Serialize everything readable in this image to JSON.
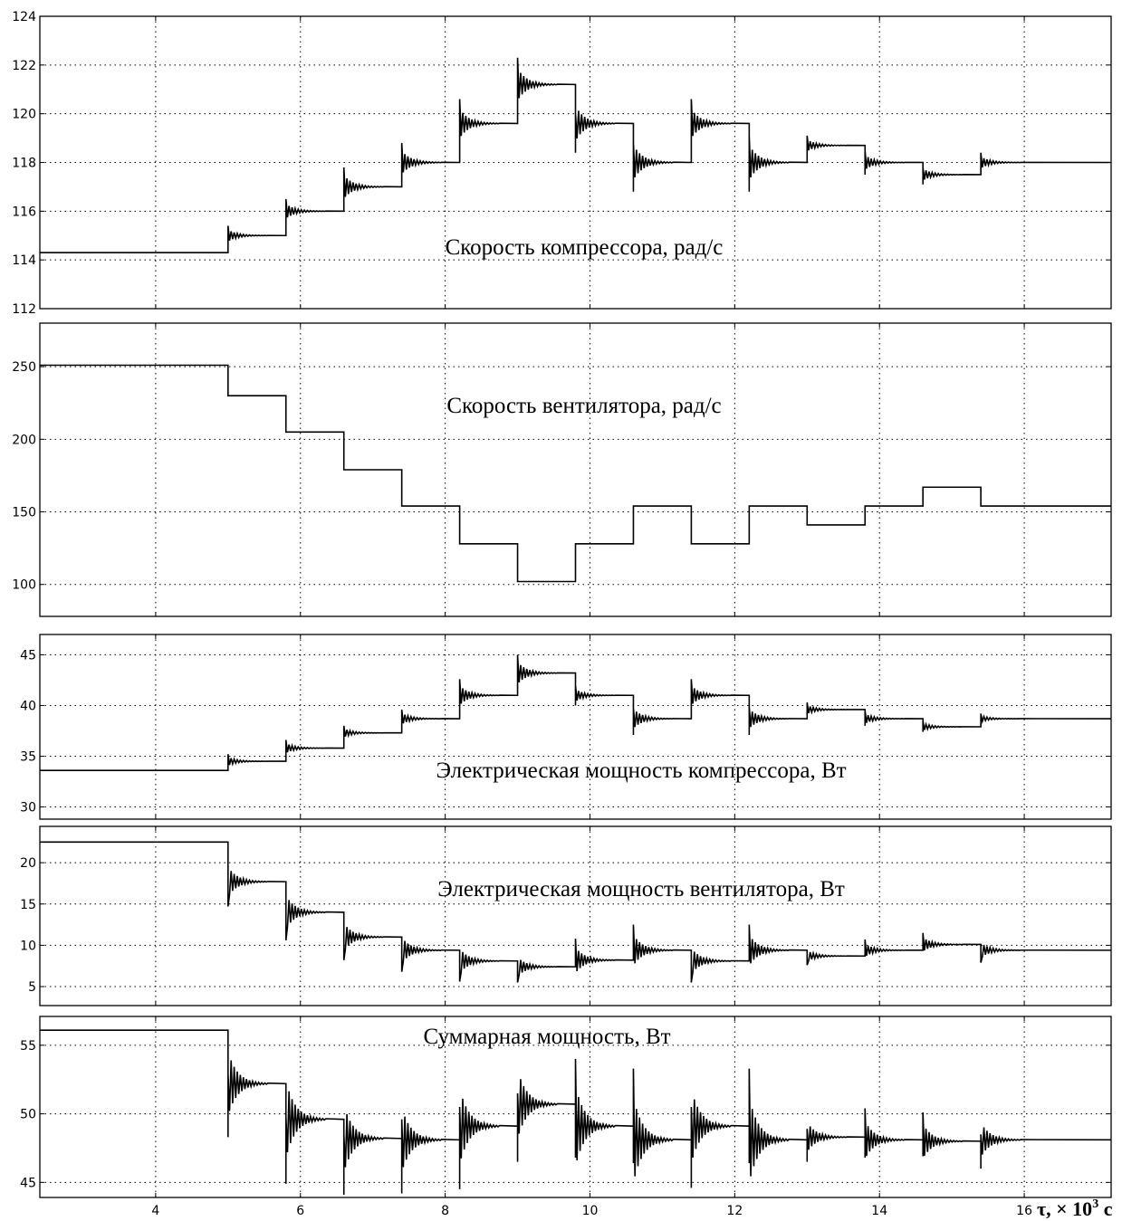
{
  "chart_data": [
    {
      "type": "line",
      "title": "Скорость компрессора, рад/с",
      "xlim": [
        2.4,
        17.2
      ],
      "ylim": [
        112,
        124
      ],
      "yticks": [
        112,
        114,
        116,
        118,
        120,
        122,
        124
      ],
      "grid": true,
      "x": [
        5.0,
        5.8,
        6.6,
        7.4,
        8.2,
        9.0,
        9.8,
        10.6,
        11.4,
        12.2,
        13.0,
        13.8,
        14.6,
        15.4
      ],
      "steps": [
        [
          2.4,
          114.3
        ],
        [
          5.0,
          115.0
        ],
        [
          5.8,
          116.0
        ],
        [
          6.6,
          117.0
        ],
        [
          7.4,
          118.0
        ],
        [
          8.2,
          119.6
        ],
        [
          9.0,
          121.2
        ],
        [
          9.8,
          119.6
        ],
        [
          10.6,
          118.0
        ],
        [
          11.4,
          119.6
        ],
        [
          12.2,
          118.0
        ],
        [
          13.0,
          118.7
        ],
        [
          13.8,
          118.0
        ],
        [
          14.6,
          117.5
        ],
        [
          15.4,
          118.0
        ]
      ],
      "spikes": [
        [
          5.0,
          115.4,
          null
        ],
        [
          5.8,
          116.5,
          null
        ],
        [
          6.6,
          117.8,
          null
        ],
        [
          7.4,
          118.8,
          null
        ],
        [
          8.2,
          120.6,
          null
        ],
        [
          9.0,
          122.3,
          null
        ],
        [
          9.8,
          120.0,
          118.4
        ],
        [
          10.6,
          118.8,
          116.8
        ],
        [
          11.4,
          120.6,
          null
        ],
        [
          12.2,
          119.1,
          116.8
        ],
        [
          13.0,
          119.1,
          null
        ],
        [
          13.8,
          118.5,
          117.5
        ],
        [
          14.6,
          117.8,
          117.1
        ],
        [
          15.4,
          118.4,
          null
        ]
      ]
    },
    {
      "type": "line",
      "title": "Скорость вентилятора, рад/с",
      "xlim": [
        2.4,
        17.2
      ],
      "ylim": [
        78,
        280
      ],
      "yticks": [
        100,
        150,
        200,
        250
      ],
      "grid": true,
      "steps": [
        [
          2.4,
          251
        ],
        [
          5.0,
          230
        ],
        [
          5.8,
          205
        ],
        [
          6.6,
          179
        ],
        [
          7.4,
          154
        ],
        [
          8.2,
          128
        ],
        [
          9.0,
          102
        ],
        [
          9.8,
          128
        ],
        [
          10.6,
          154
        ],
        [
          11.4,
          128
        ],
        [
          12.2,
          154
        ],
        [
          13.0,
          141
        ],
        [
          13.8,
          154
        ],
        [
          14.6,
          167
        ],
        [
          15.4,
          154
        ]
      ],
      "spikes": []
    },
    {
      "type": "line",
      "title": "Электрическая мощность компрессора, Вт",
      "xlim": [
        2.4,
        17.2
      ],
      "ylim": [
        28.8,
        47
      ],
      "yticks": [
        30,
        35,
        40,
        45
      ],
      "grid": true,
      "steps": [
        [
          2.4,
          33.6
        ],
        [
          5.0,
          34.5
        ],
        [
          5.8,
          35.8
        ],
        [
          6.6,
          37.3
        ],
        [
          7.4,
          38.7
        ],
        [
          8.2,
          41.0
        ],
        [
          9.0,
          43.2
        ],
        [
          9.8,
          41.0
        ],
        [
          10.6,
          38.7
        ],
        [
          11.4,
          41.0
        ],
        [
          12.2,
          38.7
        ],
        [
          13.0,
          39.6
        ],
        [
          13.8,
          38.7
        ],
        [
          14.6,
          37.9
        ],
        [
          15.4,
          38.7
        ]
      ],
      "spikes": [
        [
          5.0,
          35.2,
          null
        ],
        [
          5.8,
          36.6,
          null
        ],
        [
          6.6,
          38.0,
          null
        ],
        [
          7.4,
          39.6,
          null
        ],
        [
          8.2,
          42.6,
          null
        ],
        [
          9.0,
          45.0,
          null
        ],
        [
          9.8,
          42.0,
          40.0
        ],
        [
          10.6,
          39.8,
          37.1
        ],
        [
          11.4,
          42.6,
          null
        ],
        [
          12.2,
          39.9,
          37.1
        ],
        [
          13.0,
          40.3,
          null
        ],
        [
          13.8,
          39.5,
          38.0
        ],
        [
          14.6,
          38.5,
          37.4
        ],
        [
          15.4,
          39.2,
          null
        ]
      ]
    },
    {
      "type": "line",
      "title": "Электрическая мощность вентилятора, Вт",
      "xlim": [
        2.4,
        17.2
      ],
      "ylim": [
        2.7,
        24.4
      ],
      "yticks": [
        5,
        10,
        15,
        20
      ],
      "grid": true,
      "steps": [
        [
          2.4,
          22.5
        ],
        [
          5.0,
          17.7
        ],
        [
          5.8,
          14.0
        ],
        [
          6.6,
          11.0
        ],
        [
          7.4,
          9.4
        ],
        [
          8.2,
          8.1
        ],
        [
          9.0,
          7.4
        ],
        [
          9.8,
          8.2
        ],
        [
          10.6,
          9.4
        ],
        [
          11.4,
          8.1
        ],
        [
          12.2,
          9.4
        ],
        [
          13.0,
          8.7
        ],
        [
          13.8,
          9.4
        ],
        [
          14.6,
          10.1
        ],
        [
          15.4,
          9.4
        ]
      ],
      "spikes": [
        [
          5.0,
          null,
          14.7
        ],
        [
          5.8,
          null,
          10.6
        ],
        [
          6.6,
          null,
          8.2
        ],
        [
          7.4,
          null,
          6.8
        ],
        [
          8.2,
          null,
          5.6
        ],
        [
          9.0,
          null,
          5.5
        ],
        [
          9.8,
          10.8,
          null
        ],
        [
          10.6,
          12.5,
          null
        ],
        [
          11.4,
          null,
          5.5
        ],
        [
          12.2,
          12.5,
          null
        ],
        [
          13.0,
          null,
          7.6
        ],
        [
          13.8,
          10.7,
          null
        ],
        [
          14.6,
          11.5,
          null
        ],
        [
          15.4,
          null,
          7.9
        ]
      ]
    },
    {
      "type": "line",
      "title": "Суммарная мощность, Вт",
      "xlim": [
        2.4,
        17.2
      ],
      "ylim": [
        43.9,
        57.1
      ],
      "yticks": [
        45,
        50,
        55
      ],
      "grid": true,
      "steps": [
        [
          2.4,
          56.1
        ],
        [
          5.0,
          52.2
        ],
        [
          5.8,
          49.6
        ],
        [
          6.6,
          48.2
        ],
        [
          7.4,
          48.1
        ],
        [
          8.2,
          49.1
        ],
        [
          9.0,
          50.7
        ],
        [
          9.8,
          49.1
        ],
        [
          10.6,
          48.1
        ],
        [
          11.4,
          49.1
        ],
        [
          12.2,
          48.1
        ],
        [
          13.0,
          48.3
        ],
        [
          13.8,
          48.1
        ],
        [
          14.6,
          48.0
        ],
        [
          15.4,
          48.1
        ]
      ],
      "spikes": [
        [
          5.0,
          52.9,
          48.3
        ],
        [
          5.8,
          49.8,
          44.9
        ],
        [
          6.6,
          48.5,
          44.1
        ],
        [
          7.4,
          49.6,
          44.2
        ],
        [
          8.2,
          50.5,
          44.5
        ],
        [
          9.0,
          51.5,
          46.5
        ],
        [
          9.8,
          54.0,
          46.8
        ],
        [
          10.6,
          53.3,
          46.4
        ],
        [
          11.4,
          50.5,
          44.6
        ],
        [
          12.2,
          53.3,
          46.4
        ],
        [
          13.0,
          48.9,
          46.5
        ],
        [
          13.8,
          50.4,
          46.8
        ],
        [
          14.6,
          50.1,
          46.9
        ],
        [
          15.4,
          48.5,
          46.0
        ]
      ]
    }
  ],
  "x_axis": {
    "ticks": [
      4,
      6,
      8,
      10,
      12,
      14,
      16
    ],
    "label": "τ, × 10",
    "label_exp": "3",
    "label_unit": " с"
  }
}
